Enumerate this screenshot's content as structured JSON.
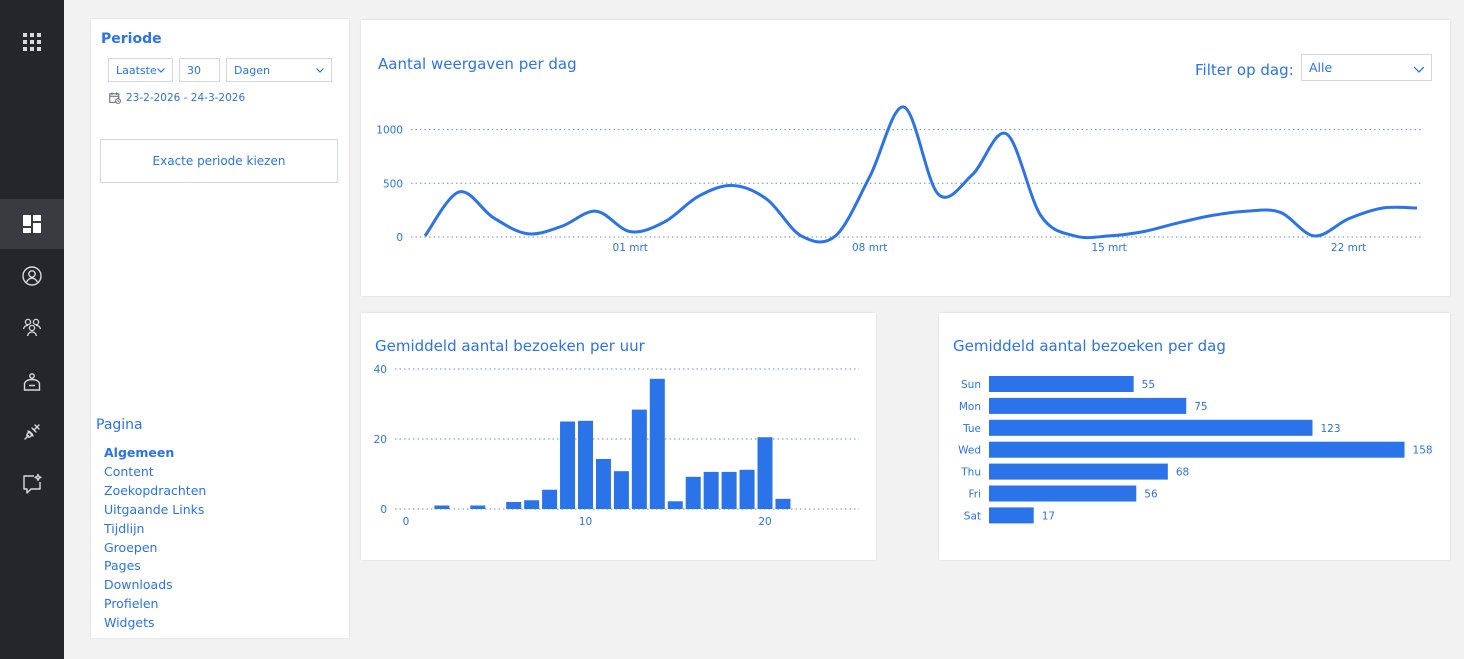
{
  "rail": {
    "items": [
      {
        "name": "apps-grid-icon"
      },
      {
        "name": "dashboard-icon",
        "active": true
      },
      {
        "name": "user-icon"
      },
      {
        "name": "group-icon"
      },
      {
        "name": "bot-icon"
      },
      {
        "name": "plug-icon"
      },
      {
        "name": "chat-sparkle-icon"
      }
    ]
  },
  "periode": {
    "title": "Periode",
    "mode": "Laatste",
    "count": "30",
    "unit": "Dagen",
    "range": "23-2-2026 - 24-3-2026",
    "exact_button": "Exacte periode kiezen"
  },
  "pagina": {
    "title": "Pagina",
    "items": [
      "Algemeen",
      "Content",
      "Zoekopdrachten",
      "Uitgaande Links",
      "Tijdlijn",
      "Groepen",
      "Pages",
      "Downloads",
      "Profielen",
      "Widgets"
    ],
    "active": "Algemeen"
  },
  "views_chart": {
    "title": "Aantal weergaven per dag",
    "filter_label": "Filter op dag:",
    "filter_value": "Alle"
  },
  "hour_chart": {
    "title": "Gemiddeld aantal bezoeken per uur"
  },
  "day_chart": {
    "title": "Gemiddeld aantal bezoeken per dag"
  },
  "colors": {
    "accent": "#2a73e8",
    "rail": "#25262a",
    "rail_active": "#3a3b40"
  },
  "chart_data": [
    {
      "type": "line",
      "x": [
        "23 feb",
        "24 feb",
        "25 feb",
        "26 feb",
        "27 feb",
        "28 feb",
        "01 mrt",
        "02 mrt",
        "03 mrt",
        "04 mrt",
        "05 mrt",
        "06 mrt",
        "07 mrt",
        "08 mrt",
        "09 mrt",
        "10 mrt",
        "11 mrt",
        "12 mrt",
        "13 mrt",
        "14 mrt",
        "15 mrt",
        "16 mrt",
        "17 mrt",
        "18 mrt",
        "19 mrt",
        "20 mrt",
        "21 mrt",
        "22 mrt",
        "23 mrt",
        "24 mrt"
      ],
      "values": [
        10,
        420,
        180,
        30,
        100,
        240,
        50,
        140,
        380,
        480,
        350,
        10,
        10,
        560,
        1210,
        400,
        580,
        960,
        200,
        10,
        10,
        50,
        130,
        200,
        240,
        230,
        10,
        170,
        270,
        270
      ],
      "xticks": [
        "01 mrt",
        "08 mrt",
        "15 mrt",
        "22 mrt"
      ],
      "yticks": [
        0,
        500,
        1000
      ],
      "ylim": [
        0,
        1300
      ],
      "grid": true
    },
    {
      "type": "bar",
      "x": [
        0,
        1,
        2,
        3,
        4,
        5,
        6,
        7,
        8,
        9,
        10,
        11,
        12,
        13,
        14,
        15,
        16,
        17,
        18,
        19,
        20,
        21
      ],
      "values": [
        0,
        0,
        1,
        0,
        1,
        0,
        2,
        2.5,
        5.5,
        25,
        25.2,
        14.3,
        10.8,
        28.4,
        37.2,
        2.2,
        9.2,
        10.6,
        10.6,
        11.2,
        20.5,
        2.9
      ],
      "xticks": [
        0,
        10,
        20
      ],
      "yticks": [
        0,
        20,
        40
      ],
      "ylim": [
        0,
        40
      ],
      "grid": true
    },
    {
      "type": "bar",
      "orientation": "horizontal",
      "categories": [
        "Sun",
        "Mon",
        "Tue",
        "Wed",
        "Thu",
        "Fri",
        "Sat"
      ],
      "values": [
        55,
        75,
        123,
        158,
        68,
        56,
        17
      ]
    }
  ]
}
